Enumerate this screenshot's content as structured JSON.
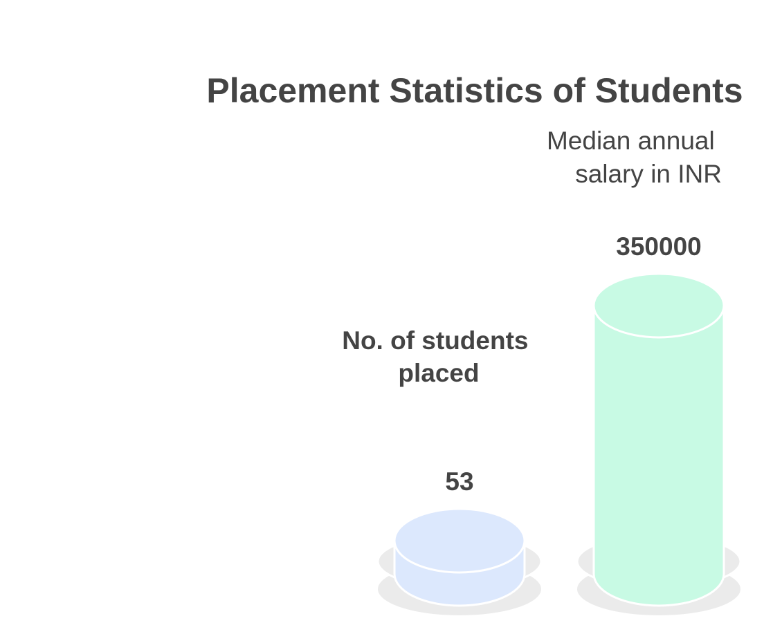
{
  "chart_data": {
    "type": "bar",
    "title": "Placement Statistics of Students",
    "categories": [
      "No. of students placed",
      "Median annual salary in INR"
    ],
    "values": [
      53,
      350000
    ],
    "value_labels": [
      "53",
      "350000"
    ],
    "colors": [
      "#dce8fd",
      "#c8fae4"
    ],
    "base_color": "#ebebeb",
    "style": "3d-cylinder",
    "grid": false,
    "legend": "none"
  }
}
